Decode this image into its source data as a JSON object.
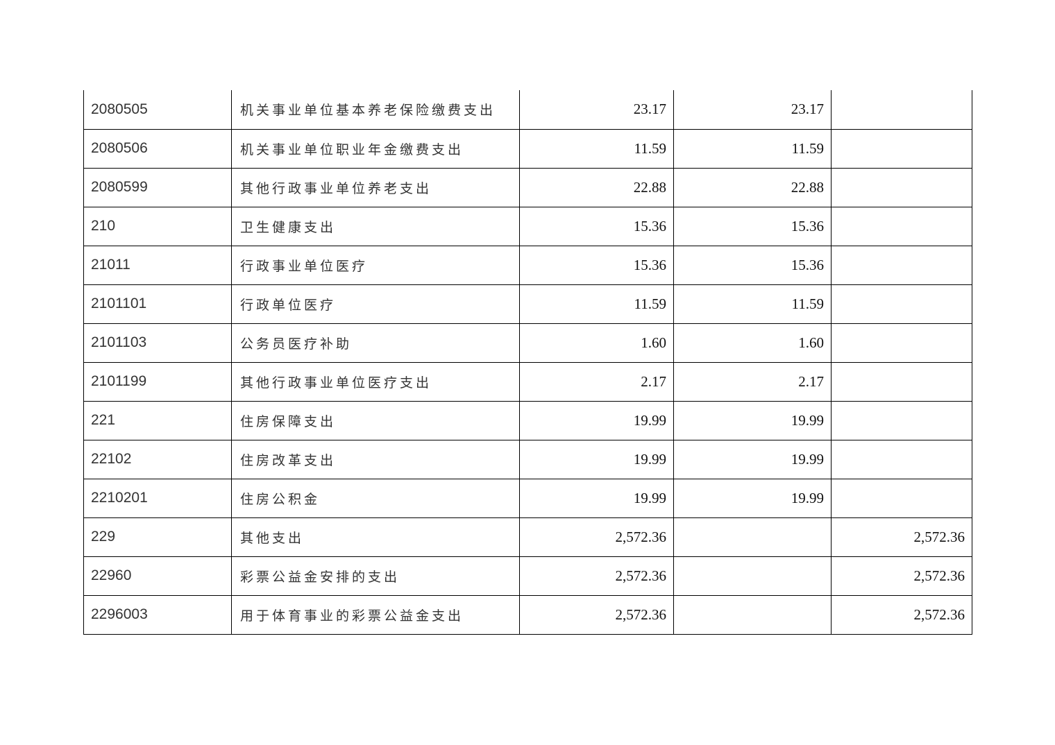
{
  "table": {
    "rows": [
      {
        "code": "2080505",
        "name": "机关事业单位基本养老保险缴费支出",
        "total": "23.17",
        "basic": "23.17",
        "project": ""
      },
      {
        "code": "2080506",
        "name": "机关事业单位职业年金缴费支出",
        "total": "11.59",
        "basic": "11.59",
        "project": ""
      },
      {
        "code": "2080599",
        "name": "其他行政事业单位养老支出",
        "total": "22.88",
        "basic": "22.88",
        "project": ""
      },
      {
        "code": "210",
        "name": "卫生健康支出",
        "total": "15.36",
        "basic": "15.36",
        "project": ""
      },
      {
        "code": "21011",
        "name": "行政事业单位医疗",
        "total": "15.36",
        "basic": "15.36",
        "project": ""
      },
      {
        "code": "2101101",
        "name": "行政单位医疗",
        "total": "11.59",
        "basic": "11.59",
        "project": ""
      },
      {
        "code": "2101103",
        "name": "公务员医疗补助",
        "total": "1.60",
        "basic": "1.60",
        "project": ""
      },
      {
        "code": "2101199",
        "name": "其他行政事业单位医疗支出",
        "total": "2.17",
        "basic": "2.17",
        "project": ""
      },
      {
        "code": "221",
        "name": "住房保障支出",
        "total": "19.99",
        "basic": "19.99",
        "project": ""
      },
      {
        "code": "22102",
        "name": "住房改革支出",
        "total": "19.99",
        "basic": "19.99",
        "project": ""
      },
      {
        "code": "2210201",
        "name": "住房公积金",
        "total": "19.99",
        "basic": "19.99",
        "project": ""
      },
      {
        "code": "229",
        "name": "其他支出",
        "total": "2,572.36",
        "basic": "",
        "project": "2,572.36"
      },
      {
        "code": "22960",
        "name": "彩票公益金安排的支出",
        "total": "2,572.36",
        "basic": "",
        "project": "2,572.36"
      },
      {
        "code": "2296003",
        "name": "用于体育事业的彩票公益金支出",
        "total": "2,572.36",
        "basic": "",
        "project": "2,572.36"
      }
    ]
  }
}
